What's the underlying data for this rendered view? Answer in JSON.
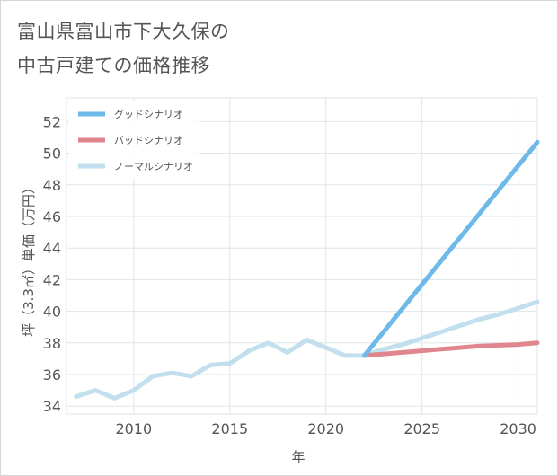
{
  "title_lines": [
    "富山県富山市下大久保の",
    "中古戸建ての価格推移"
  ],
  "chart_data": {
    "type": "line",
    "xlabel": "年",
    "ylabel": "坪（3.3㎡）単価（万円）",
    "xlim": [
      2006.5,
      2031
    ],
    "ylim": [
      33.5,
      53.5
    ],
    "xticks": [
      2010,
      2015,
      2020,
      2025,
      2030
    ],
    "yticks": [
      34,
      36,
      38,
      40,
      42,
      44,
      46,
      48,
      50,
      52
    ],
    "grid": true,
    "legend_position": "top-left",
    "series": [
      {
        "name": "グッドシナリオ",
        "color": "#6cb9ea",
        "x": [
          2022,
          2031
        ],
        "y": [
          37.2,
          50.7
        ]
      },
      {
        "name": "バッドシナリオ",
        "color": "#e0868e",
        "x": [
          2022,
          2024,
          2026,
          2028,
          2030,
          2031
        ],
        "y": [
          37.2,
          37.4,
          37.6,
          37.8,
          37.9,
          38.0
        ]
      },
      {
        "name": "ノーマルシナリオ",
        "color": "#c2dfee",
        "x": [
          2007,
          2008,
          2009,
          2010,
          2011,
          2012,
          2013,
          2014,
          2015,
          2016,
          2017,
          2018,
          2019,
          2020,
          2021,
          2022,
          2023,
          2024,
          2025,
          2026,
          2027,
          2028,
          2029,
          2030,
          2031
        ],
        "y": [
          34.6,
          35.0,
          34.5,
          35.0,
          35.9,
          36.1,
          35.9,
          36.6,
          36.7,
          37.5,
          38.0,
          37.4,
          38.2,
          37.7,
          37.2,
          37.2,
          37.6,
          37.9,
          38.3,
          38.7,
          39.1,
          39.5,
          39.8,
          40.2,
          40.6
        ]
      }
    ]
  }
}
